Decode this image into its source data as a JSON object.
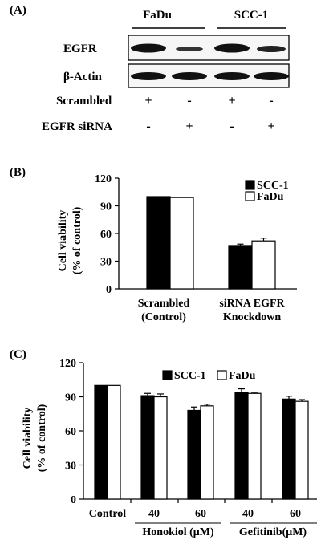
{
  "panel_a": {
    "label": "(A)",
    "cell_lines": [
      "FaDu",
      "SCC-1"
    ],
    "blot_rows": [
      "EGFR",
      "β-Actin"
    ],
    "treatment_rows": [
      {
        "label": "Scrambled",
        "marks": [
          "+",
          "-",
          "+",
          "-"
        ]
      },
      {
        "label": "EGFR siRNA",
        "marks": [
          "-",
          "+",
          "-",
          "+"
        ]
      }
    ]
  },
  "panel_b": {
    "label": "(B)",
    "ylabel_line1": "Cell viability",
    "ylabel_line2": "(% of control)",
    "significance": "*",
    "groups": [
      {
        "line1": "Scrambled",
        "line2": "(Control)"
      },
      {
        "line1": "siRNA EGFR",
        "line2": "Knockdown"
      }
    ]
  },
  "panel_c": {
    "label": "(C)",
    "ylabel_line1": "Cell viability",
    "ylabel_line2": "(% of control)",
    "dose_unit_groups": [
      "Honokiol (μM)",
      "Gefitinib(μM)"
    ]
  },
  "chart_data": [
    {
      "type": "bar",
      "panel": "B",
      "categories": [
        "Scrambled (Control)",
        "siRNA EGFR Knockdown"
      ],
      "series": [
        {
          "name": "SCC-1",
          "color": "#000000",
          "values": [
            100,
            47
          ],
          "errors": [
            0,
            1.5
          ]
        },
        {
          "name": "FaDu",
          "color": "#ffffff",
          "values": [
            99,
            52
          ],
          "errors": [
            0,
            3
          ]
        }
      ],
      "ylim": [
        0,
        120
      ],
      "yticks": [
        0,
        30,
        60,
        90,
        120
      ],
      "legend": "top-right"
    },
    {
      "type": "bar",
      "panel": "C",
      "categories": [
        "Control",
        "40",
        "60",
        "40",
        "60"
      ],
      "series": [
        {
          "name": "SCC-1",
          "color": "#000000",
          "values": [
            100,
            91,
            78,
            94,
            88
          ],
          "errors": [
            0,
            2,
            3,
            3,
            2.5
          ]
        },
        {
          "name": "FaDu",
          "color": "#ffffff",
          "values": [
            100,
            90,
            82,
            93,
            86
          ],
          "errors": [
            0,
            2.5,
            1.5,
            1,
            1.5
          ]
        }
      ],
      "ylim": [
        0,
        120
      ],
      "yticks": [
        0,
        30,
        60,
        90,
        120
      ],
      "legend": "top-right"
    }
  ]
}
